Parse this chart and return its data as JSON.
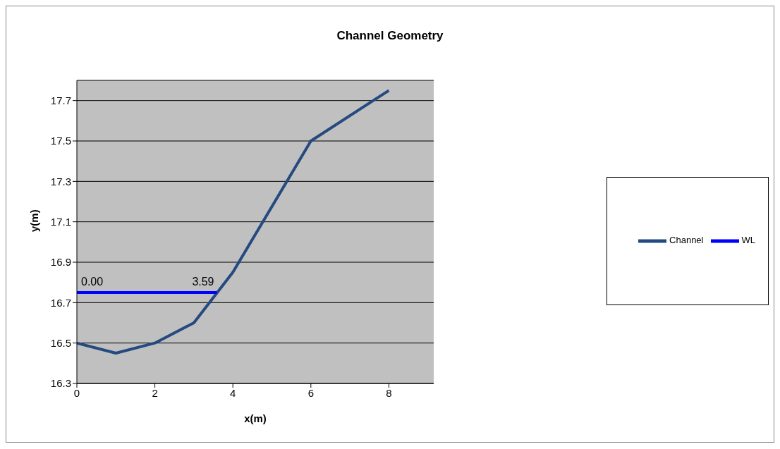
{
  "chart_data": {
    "type": "line",
    "title": "Channel Geometry",
    "xlabel": "x(m)",
    "ylabel": "y(m)",
    "series": [
      {
        "name": "Channel",
        "color": "#254a80",
        "x": [
          0,
          1,
          2,
          3,
          4,
          6,
          8
        ],
        "values": [
          16.5,
          16.45,
          16.5,
          16.6,
          16.85,
          17.5,
          17.75
        ]
      },
      {
        "name": "WL",
        "color": "#0000ff",
        "x": [
          0,
          3.59
        ],
        "values": [
          16.75,
          16.75
        ]
      }
    ],
    "annotations": [
      {
        "text": "0.00",
        "x": 0,
        "y": 16.75
      },
      {
        "text": "3.59",
        "x": 3.59,
        "y": 16.75
      }
    ],
    "xlim": [
      0,
      9.15
    ],
    "xticks": [
      0,
      2,
      4,
      6,
      8
    ],
    "ylim": [
      16.3,
      17.8
    ],
    "yticks": [
      16.3,
      16.5,
      16.7,
      16.9,
      17.1,
      17.3,
      17.5,
      17.7
    ],
    "grid": "y",
    "legend": "right",
    "marker": "none",
    "line_style": "solid"
  }
}
